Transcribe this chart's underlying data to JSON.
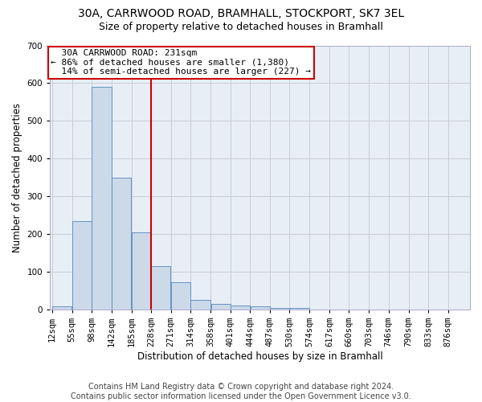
{
  "title_line1": "30A, CARRWOOD ROAD, BRAMHALL, STOCKPORT, SK7 3EL",
  "title_line2": "Size of property relative to detached houses in Bramhall",
  "xlabel": "Distribution of detached houses by size in Bramhall",
  "ylabel": "Number of detached properties",
  "bin_edges": [
    12,
    55,
    98,
    142,
    185,
    228,
    271,
    314,
    358,
    401,
    444,
    487,
    530,
    574,
    617,
    660,
    703,
    746,
    790,
    833,
    876
  ],
  "bar_heights": [
    8,
    235,
    590,
    350,
    205,
    115,
    73,
    25,
    15,
    10,
    8,
    5,
    5,
    0,
    0,
    0,
    0,
    0,
    0,
    0
  ],
  "bar_color": "#ccd9e8",
  "bar_edge_color": "#5588bb",
  "vline_x": 228,
  "vline_color": "#cc0000",
  "annotation_text": "  30A CARRWOOD ROAD: 231sqm\n← 86% of detached houses are smaller (1,380)\n  14% of semi-detached houses are larger (227) →",
  "annotation_box_color": "#cc0000",
  "ylim": [
    0,
    700
  ],
  "yticks": [
    0,
    100,
    200,
    300,
    400,
    500,
    600,
    700
  ],
  "footer_line1": "Contains HM Land Registry data © Crown copyright and database right 2024.",
  "footer_line2": "Contains public sector information licensed under the Open Government Licence v3.0.",
  "bg_color": "#ffffff",
  "plot_bg_color": "#e8eef6",
  "grid_color": "#c8ccd8",
  "title_fontsize": 10,
  "subtitle_fontsize": 9,
  "axis_label_fontsize": 8.5,
  "tick_fontsize": 7.5,
  "annotation_fontsize": 8,
  "footer_fontsize": 7
}
